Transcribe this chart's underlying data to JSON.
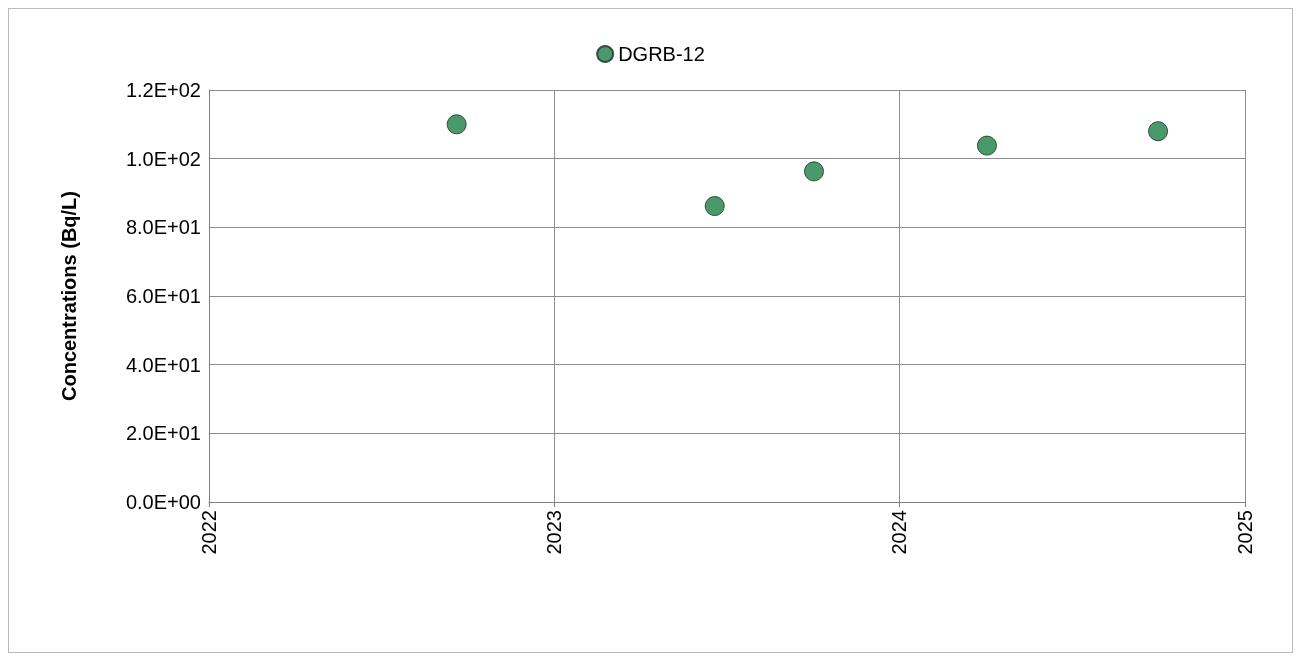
{
  "chart_data": {
    "type": "scatter",
    "ylabel": "Concentrations (Bq/L)",
    "x": [
      "2022-09-20",
      "2023-06-20",
      "2023-10-03",
      "2024-04-03",
      "2024-10-01"
    ],
    "series": [
      {
        "name": "DGRB-12",
        "color": "#1b8049",
        "values": [
          110,
          86.2,
          96.3,
          103.8,
          108
        ]
      }
    ],
    "xlim": [
      "2022",
      "2025"
    ],
    "xticks": [
      "2022",
      "2023",
      "2024",
      "2025"
    ],
    "ylim": [
      0,
      120
    ],
    "yticks": [
      {
        "value": 0,
        "label": "0.0E+00"
      },
      {
        "value": 20,
        "label": "2.0E+01"
      },
      {
        "value": 40,
        "label": "4.0E+01"
      },
      {
        "value": 60,
        "label": "6.0E+01"
      },
      {
        "value": 80,
        "label": "8.0E+01"
      },
      {
        "value": 100,
        "label": "1.0E+02"
      },
      {
        "value": 120,
        "label": "1.2E+02"
      }
    ],
    "grid": true,
    "legend": "top",
    "marker": "circle"
  }
}
